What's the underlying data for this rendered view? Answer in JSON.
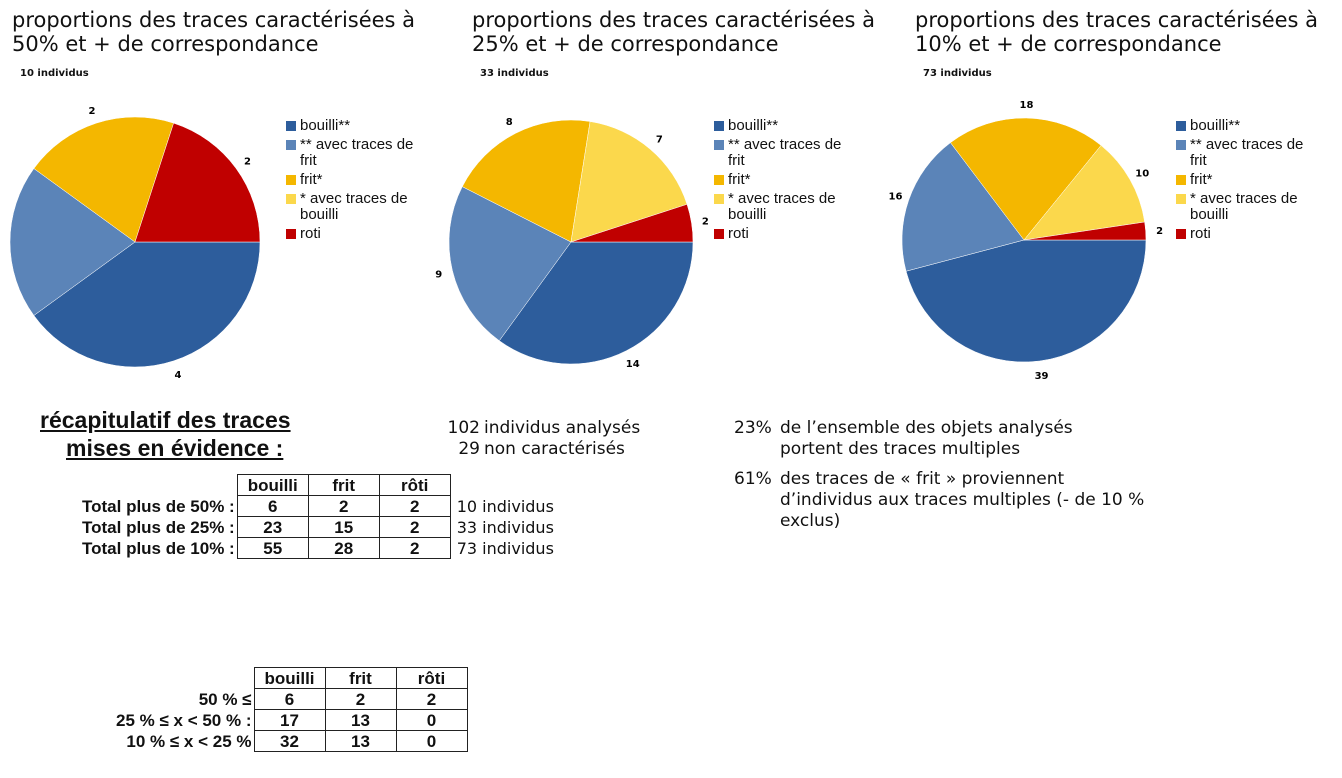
{
  "chart_data": [
    {
      "type": "pie",
      "title": "proportions des traces caractérisées à 50% et + de correspondance",
      "subtitle": "10 individus",
      "categories": [
        "bouilli**",
        "** avec traces de frit",
        "frit*",
        "* avec traces de bouilli",
        "roti"
      ],
      "colors": [
        "#2d5d9c",
        "#5b84b8",
        "#f4b700",
        "#fbd84c",
        "#c00000"
      ],
      "values": [
        4,
        2,
        2,
        null,
        2
      ]
    },
    {
      "type": "pie",
      "title": "proportions des traces caractérisées à 25% et + de correspondance",
      "subtitle": "33 individus",
      "categories": [
        "bouilli**",
        "** avec traces de frit",
        "frit*",
        "* avec traces de bouilli",
        "roti"
      ],
      "colors": [
        "#2d5d9c",
        "#5b84b8",
        "#f4b700",
        "#fbd84c",
        "#c00000"
      ],
      "values": [
        14,
        9,
        8,
        7,
        2
      ]
    },
    {
      "type": "pie",
      "title": "proportions des traces caractérisées à 10% et + de correspondance",
      "subtitle": "73 individus",
      "categories": [
        "bouilli**",
        "** avec traces de frit",
        "frit*",
        "* avec traces de bouilli",
        "roti"
      ],
      "colors": [
        "#2d5d9c",
        "#5b84b8",
        "#f4b700",
        "#fbd84c",
        "#c00000"
      ],
      "values": [
        39,
        16,
        18,
        10,
        2
      ]
    }
  ],
  "summary": {
    "heading": [
      "récapitulatif des traces",
      "mises en évidence :"
    ],
    "counts": [
      {
        "value": "102",
        "text": "individus analysés"
      },
      {
        "value": "29",
        "text": "non caractérisés"
      }
    ],
    "notes": [
      {
        "value": "23%",
        "text": "de l’ensemble des objets analysés portent des traces multiples"
      },
      {
        "value": "61%",
        "text": "des traces de « frit » proviennent d’individus aux traces multiples (- de 10 % exclus)"
      }
    ]
  },
  "table1": {
    "headers": [
      "bouilli",
      "frit",
      "rôti"
    ],
    "rows": [
      {
        "label": "Total plus de 50% :",
        "cells": [
          "6",
          "2",
          "2"
        ],
        "note": "10 individus"
      },
      {
        "label": "Total plus de 25% :",
        "cells": [
          "23",
          "15",
          "2"
        ],
        "note": "33 individus"
      },
      {
        "label": "Total plus de 10% :",
        "cells": [
          "55",
          "28",
          "2"
        ],
        "note": "73 individus"
      }
    ]
  },
  "table2": {
    "headers": [
      "bouilli",
      "frit",
      "rôti"
    ],
    "rows": [
      {
        "label": "50 % ≤",
        "cells": [
          "6",
          "2",
          "2"
        ]
      },
      {
        "label": "25 % ≤ x < 50 % :",
        "cells": [
          "17",
          "13",
          "0"
        ]
      },
      {
        "label": "10 % ≤ x < 25 %",
        "cells": [
          "32",
          "13",
          "0"
        ]
      }
    ]
  }
}
